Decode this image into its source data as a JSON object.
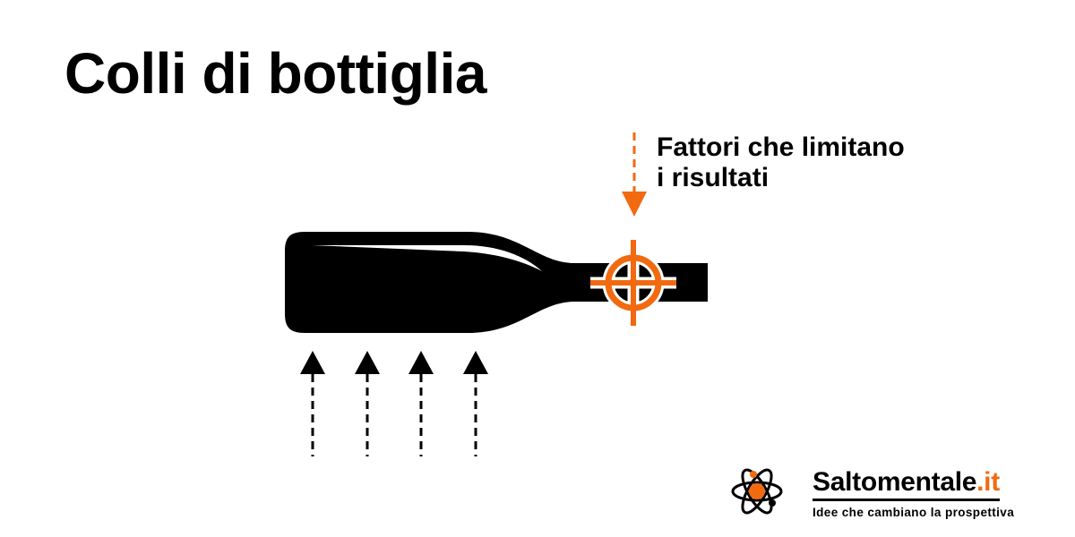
{
  "title": "Colli di bottiglia",
  "callout": {
    "line1": "Fattori che limitano",
    "line2": "i risultati"
  },
  "brand": {
    "name": "Saltomentale",
    "tld": ".it",
    "tagline": "Idee che cambiano la prospettiva"
  },
  "colors": {
    "accent": "#f26a10",
    "ink": "#000000",
    "background": "#ffffff"
  },
  "icons": [
    "bottle-icon",
    "crosshair-icon",
    "arrow-down-icon",
    "arrow-up-icon",
    "atom-logo-icon"
  ]
}
